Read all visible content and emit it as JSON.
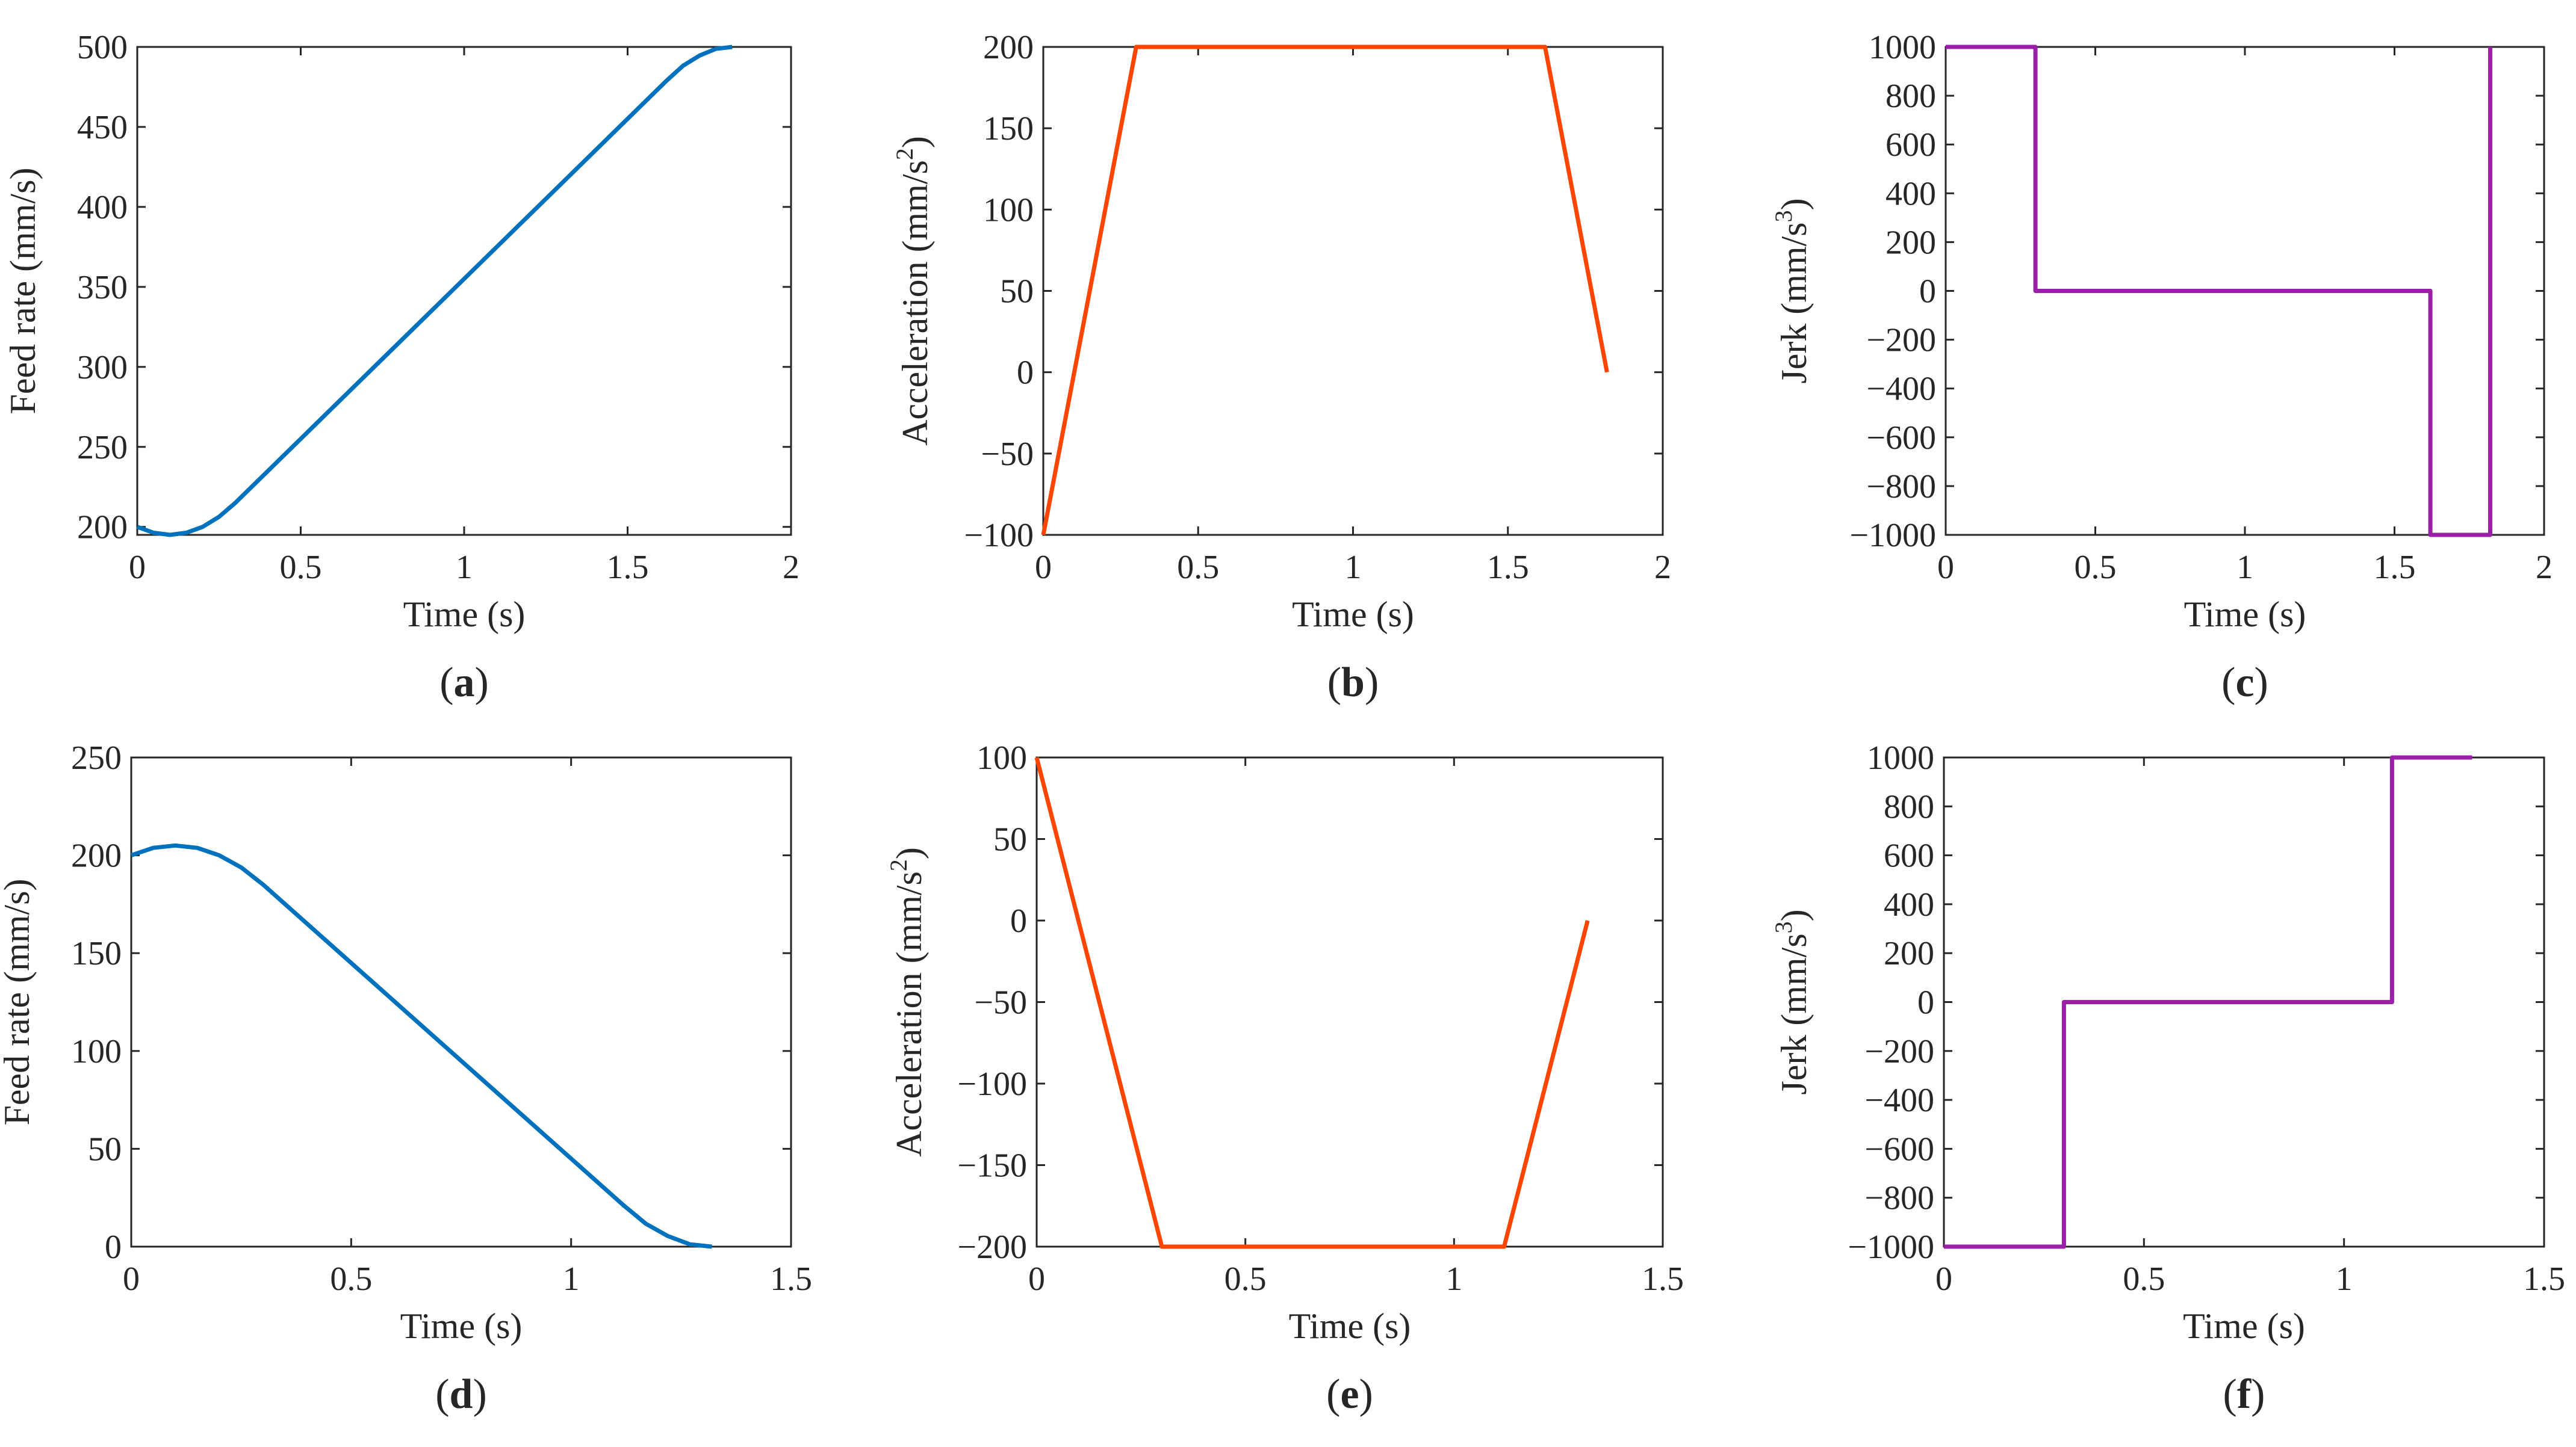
{
  "figure": {
    "colors": {
      "feed": "#0072bd",
      "acceleration": "#ff4500",
      "jerk": "#9b1fa8"
    }
  },
  "chart_data": [
    {
      "id": "a",
      "type": "line",
      "caption_letter": "a",
      "xlabel": "Time (s)",
      "ylabel": "Feed rate (mm/s)",
      "xlim": [
        0,
        2
      ],
      "ylim": [
        195,
        500
      ],
      "xticks": [
        0,
        0.5,
        1,
        1.5,
        2
      ],
      "xtick_labels": [
        "0",
        "0.5",
        "1",
        "1.5",
        "2"
      ],
      "yticks": [
        200,
        250,
        300,
        350,
        400,
        450,
        500
      ],
      "ytick_labels": [
        "200",
        "250",
        "300",
        "350",
        "400",
        "450",
        "500"
      ],
      "series": [
        {
          "name": "Feed rate",
          "color": "#0072bd",
          "x": [
            0,
            0.05,
            0.1,
            0.15,
            0.2,
            0.25,
            0.3,
            1.62,
            1.67,
            1.72,
            1.77,
            1.82
          ],
          "y": [
            200,
            196.3,
            195,
            196.3,
            200,
            206.3,
            215,
            479.1,
            488.3,
            494.6,
            498.8,
            500
          ]
        }
      ]
    },
    {
      "id": "b",
      "type": "line",
      "caption_letter": "b",
      "xlabel": "Time (s)",
      "ylabel": "Acceleration (mm/s",
      "ylabel_sup": "2",
      "ylabel_end": ")",
      "xlim": [
        0,
        2
      ],
      "ylim": [
        -100,
        200
      ],
      "xticks": [
        0,
        0.5,
        1,
        1.5,
        2
      ],
      "xtick_labels": [
        "0",
        "0.5",
        "1",
        "1.5",
        "2"
      ],
      "yticks": [
        -100,
        -50,
        0,
        50,
        100,
        150,
        200
      ],
      "ytick_labels": [
        "−100",
        "−50",
        "0",
        "50",
        "100",
        "150",
        "200"
      ],
      "series": [
        {
          "name": "Acceleration",
          "color": "#ff4500",
          "x": [
            0,
            0.3,
            1.62,
            1.82
          ],
          "y": [
            -100,
            200,
            200,
            0
          ]
        }
      ]
    },
    {
      "id": "c",
      "type": "line",
      "caption_letter": "c",
      "xlabel": "Time (s)",
      "ylabel": "Jerk (mm/s",
      "ylabel_sup": "3",
      "ylabel_end": ")",
      "xlim": [
        0,
        2
      ],
      "ylim": [
        -1000,
        1000
      ],
      "xticks": [
        0,
        0.5,
        1,
        1.5,
        2
      ],
      "xtick_labels": [
        "0",
        "0.5",
        "1",
        "1.5",
        "2"
      ],
      "yticks": [
        -1000,
        -800,
        -600,
        -400,
        -200,
        0,
        200,
        400,
        600,
        800,
        1000
      ],
      "ytick_labels": [
        "−1000",
        "−800",
        "−600",
        "−400",
        "−200",
        "0",
        "200",
        "400",
        "600",
        "800",
        "1000"
      ],
      "series": [
        {
          "name": "Jerk",
          "color": "#9b1fa8",
          "x": [
            0,
            0.3,
            0.3,
            1.62,
            1.62,
            1.82,
            1.82
          ],
          "y": [
            1000,
            1000,
            0,
            0,
            -1000,
            -1000,
            1000
          ]
        }
      ]
    },
    {
      "id": "d",
      "type": "line",
      "caption_letter": "d",
      "xlabel": "Time (s)",
      "ylabel": "Feed rate (mm/s)",
      "xlim": [
        0,
        1.5
      ],
      "ylim": [
        0,
        250
      ],
      "xticks": [
        0,
        0.5,
        1,
        1.5
      ],
      "xtick_labels": [
        "0",
        "0.5",
        "1",
        "1.5"
      ],
      "yticks": [
        0,
        50,
        100,
        150,
        200,
        250
      ],
      "ytick_labels": [
        "0",
        "50",
        "100",
        "150",
        "200",
        "250"
      ],
      "series": [
        {
          "name": "Feed rate",
          "color": "#0072bd",
          "x": [
            0,
            0.05,
            0.1,
            0.15,
            0.2,
            0.25,
            0.3,
            1.12,
            1.17,
            1.22,
            1.27,
            1.32
          ],
          "y": [
            200,
            203.8,
            205,
            203.8,
            200,
            193.8,
            185,
            21.0,
            11.7,
            5.4,
            1.2,
            0
          ]
        }
      ]
    },
    {
      "id": "e",
      "type": "line",
      "caption_letter": "e",
      "xlabel": "Time (s)",
      "ylabel": "Acceleration (mm/s",
      "ylabel_sup": "2",
      "ylabel_end": ")",
      "xlim": [
        0,
        1.5
      ],
      "ylim": [
        -200,
        100
      ],
      "xticks": [
        0,
        0.5,
        1,
        1.5
      ],
      "xtick_labels": [
        "0",
        "0.5",
        "1",
        "1.5"
      ],
      "yticks": [
        -200,
        -150,
        -100,
        -50,
        0,
        50,
        100
      ],
      "ytick_labels": [
        "−200",
        "−150",
        "−100",
        "−50",
        "0",
        "50",
        "100"
      ],
      "series": [
        {
          "name": "Acceleration",
          "color": "#ff4500",
          "x": [
            0,
            0.3,
            1.12,
            1.32
          ],
          "y": [
            100,
            -200,
            -200,
            0
          ]
        }
      ]
    },
    {
      "id": "f",
      "type": "line",
      "caption_letter": "f",
      "xlabel": "Time (s)",
      "ylabel": "Jerk (mm/s",
      "ylabel_sup": "3",
      "ylabel_end": ")",
      "xlim": [
        0,
        1.5
      ],
      "ylim": [
        -1000,
        1000
      ],
      "xticks": [
        0,
        0.5,
        1,
        1.5
      ],
      "xtick_labels": [
        "0",
        "0.5",
        "1",
        "1.5"
      ],
      "yticks": [
        -1000,
        -800,
        -600,
        -400,
        -200,
        0,
        200,
        400,
        600,
        800,
        1000
      ],
      "ytick_labels": [
        "−1000",
        "−800",
        "−600",
        "−400",
        "−200",
        "0",
        "200",
        "400",
        "600",
        "800",
        "1000"
      ],
      "series": [
        {
          "name": "Jerk",
          "color": "#9b1fa8",
          "x": [
            0,
            0.3,
            0.3,
            1.12,
            1.12,
            1.32
          ],
          "y": [
            -1000,
            -1000,
            0,
            0,
            1000,
            1000
          ]
        }
      ]
    }
  ]
}
